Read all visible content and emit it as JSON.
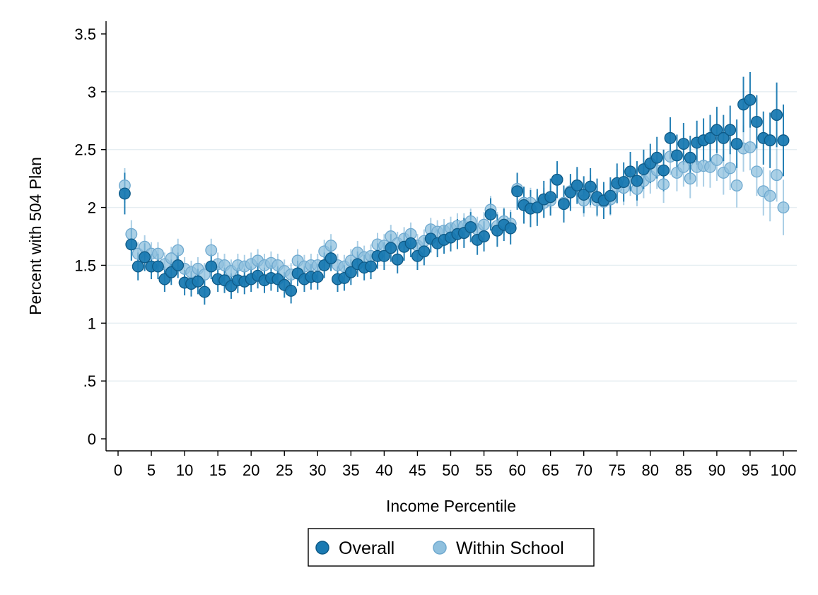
{
  "chart_data": {
    "type": "scatter",
    "xlabel": "Income Percentile",
    "ylabel": "Percent with 504 Plan",
    "xlim": [
      0,
      100
    ],
    "ylim": [
      0,
      3.5
    ],
    "x_ticks": [
      0,
      5,
      10,
      15,
      20,
      25,
      30,
      35,
      40,
      45,
      50,
      55,
      60,
      65,
      70,
      75,
      80,
      85,
      90,
      95,
      100
    ],
    "y_ticks": [
      {
        "value": 0,
        "label": "0"
      },
      {
        "value": 0.5,
        "label": ".5"
      },
      {
        "value": 1,
        "label": "1"
      },
      {
        "value": 1.5,
        "label": "1.5"
      },
      {
        "value": 2,
        "label": "2"
      },
      {
        "value": 2.5,
        "label": "2.5"
      },
      {
        "value": 3,
        "label": "3"
      },
      {
        "value": 3.5,
        "label": "3.5"
      }
    ],
    "grid": "horizontal",
    "legend": "bottom-center",
    "x": [
      1,
      2,
      3,
      4,
      5,
      6,
      7,
      8,
      9,
      10,
      11,
      12,
      13,
      14,
      15,
      16,
      17,
      18,
      19,
      20,
      21,
      22,
      23,
      24,
      25,
      26,
      27,
      28,
      29,
      30,
      31,
      32,
      33,
      34,
      35,
      36,
      37,
      38,
      39,
      40,
      41,
      42,
      43,
      44,
      45,
      46,
      47,
      48,
      49,
      50,
      51,
      52,
      53,
      54,
      55,
      56,
      57,
      58,
      59,
      60,
      61,
      62,
      63,
      64,
      65,
      66,
      67,
      68,
      69,
      70,
      71,
      72,
      73,
      74,
      75,
      76,
      77,
      78,
      79,
      80,
      81,
      82,
      83,
      84,
      85,
      86,
      87,
      88,
      89,
      90,
      91,
      92,
      93,
      94,
      95,
      96,
      97,
      98,
      99,
      100
    ],
    "series": [
      {
        "name": "Within School",
        "color": "#8fc0de",
        "values": [
          2.19,
          1.77,
          1.6,
          1.66,
          1.6,
          1.6,
          1.51,
          1.56,
          1.63,
          1.47,
          1.44,
          1.47,
          1.42,
          1.63,
          1.51,
          1.5,
          1.45,
          1.5,
          1.49,
          1.51,
          1.54,
          1.5,
          1.52,
          1.5,
          1.45,
          1.42,
          1.54,
          1.49,
          1.5,
          1.5,
          1.62,
          1.67,
          1.5,
          1.49,
          1.54,
          1.61,
          1.57,
          1.58,
          1.68,
          1.67,
          1.75,
          1.69,
          1.73,
          1.77,
          1.67,
          1.71,
          1.81,
          1.79,
          1.8,
          1.82,
          1.84,
          1.84,
          1.88,
          1.81,
          1.85,
          1.98,
          1.84,
          1.88,
          1.86,
          2.16,
          2.04,
          2.04,
          2.0,
          2.04,
          2.06,
          2.24,
          2.04,
          2.14,
          2.19,
          2.06,
          2.14,
          2.06,
          2.05,
          2.07,
          2.18,
          2.17,
          2.25,
          2.16,
          2.23,
          2.27,
          2.32,
          2.2,
          2.44,
          2.3,
          2.35,
          2.25,
          2.35,
          2.36,
          2.35,
          2.41,
          2.3,
          2.34,
          2.19,
          2.51,
          2.52,
          2.31,
          2.14,
          2.1,
          2.28,
          2.0
        ],
        "errors": [
          0.15,
          0.12,
          0.1,
          0.1,
          0.1,
          0.1,
          0.1,
          0.1,
          0.1,
          0.1,
          0.1,
          0.1,
          0.1,
          0.1,
          0.1,
          0.1,
          0.1,
          0.1,
          0.1,
          0.1,
          0.1,
          0.1,
          0.1,
          0.1,
          0.1,
          0.1,
          0.1,
          0.1,
          0.1,
          0.1,
          0.1,
          0.1,
          0.1,
          0.1,
          0.1,
          0.1,
          0.1,
          0.1,
          0.1,
          0.1,
          0.1,
          0.1,
          0.1,
          0.1,
          0.1,
          0.1,
          0.1,
          0.1,
          0.1,
          0.1,
          0.11,
          0.11,
          0.11,
          0.11,
          0.11,
          0.12,
          0.12,
          0.12,
          0.12,
          0.13,
          0.13,
          0.13,
          0.13,
          0.13,
          0.13,
          0.14,
          0.14,
          0.14,
          0.14,
          0.14,
          0.14,
          0.14,
          0.14,
          0.14,
          0.15,
          0.15,
          0.15,
          0.15,
          0.15,
          0.15,
          0.16,
          0.16,
          0.16,
          0.16,
          0.17,
          0.17,
          0.17,
          0.18,
          0.18,
          0.18,
          0.19,
          0.19,
          0.19,
          0.2,
          0.2,
          0.21,
          0.21,
          0.22,
          0.23,
          0.24
        ]
      },
      {
        "name": "Overall",
        "color": "#1a7ab2",
        "values": [
          2.12,
          1.68,
          1.49,
          1.57,
          1.49,
          1.49,
          1.38,
          1.44,
          1.5,
          1.35,
          1.34,
          1.36,
          1.27,
          1.49,
          1.38,
          1.37,
          1.32,
          1.37,
          1.36,
          1.38,
          1.41,
          1.37,
          1.39,
          1.38,
          1.33,
          1.28,
          1.43,
          1.38,
          1.4,
          1.4,
          1.5,
          1.56,
          1.38,
          1.39,
          1.44,
          1.51,
          1.48,
          1.49,
          1.58,
          1.58,
          1.65,
          1.55,
          1.66,
          1.69,
          1.58,
          1.62,
          1.73,
          1.69,
          1.72,
          1.74,
          1.77,
          1.78,
          1.83,
          1.72,
          1.75,
          1.94,
          1.8,
          1.85,
          1.82,
          2.14,
          2.02,
          1.99,
          2.0,
          2.07,
          2.09,
          2.24,
          2.03,
          2.13,
          2.19,
          2.11,
          2.18,
          2.09,
          2.06,
          2.1,
          2.21,
          2.22,
          2.31,
          2.23,
          2.33,
          2.38,
          2.43,
          2.32,
          2.6,
          2.45,
          2.55,
          2.43,
          2.56,
          2.58,
          2.6,
          2.67,
          2.6,
          2.67,
          2.55,
          2.89,
          2.93,
          2.74,
          2.6,
          2.58,
          2.8,
          2.58
        ],
        "errors": [
          0.18,
          0.14,
          0.12,
          0.12,
          0.11,
          0.11,
          0.11,
          0.11,
          0.11,
          0.11,
          0.11,
          0.11,
          0.11,
          0.11,
          0.11,
          0.11,
          0.11,
          0.11,
          0.11,
          0.11,
          0.11,
          0.11,
          0.11,
          0.11,
          0.11,
          0.11,
          0.11,
          0.11,
          0.11,
          0.11,
          0.11,
          0.11,
          0.11,
          0.11,
          0.11,
          0.11,
          0.11,
          0.11,
          0.11,
          0.12,
          0.12,
          0.12,
          0.12,
          0.12,
          0.12,
          0.12,
          0.12,
          0.12,
          0.12,
          0.12,
          0.13,
          0.13,
          0.13,
          0.13,
          0.13,
          0.14,
          0.14,
          0.14,
          0.14,
          0.16,
          0.16,
          0.16,
          0.16,
          0.16,
          0.16,
          0.16,
          0.16,
          0.16,
          0.16,
          0.16,
          0.16,
          0.16,
          0.16,
          0.16,
          0.17,
          0.17,
          0.17,
          0.17,
          0.17,
          0.17,
          0.18,
          0.18,
          0.18,
          0.18,
          0.18,
          0.19,
          0.19,
          0.19,
          0.2,
          0.2,
          0.2,
          0.21,
          0.21,
          0.24,
          0.24,
          0.23,
          0.23,
          0.24,
          0.28,
          0.31
        ]
      }
    ]
  },
  "legend": {
    "items": [
      {
        "label": "Overall",
        "color": "#1a7ab2"
      },
      {
        "label": "Within School",
        "color": "#8fc0de"
      }
    ]
  }
}
